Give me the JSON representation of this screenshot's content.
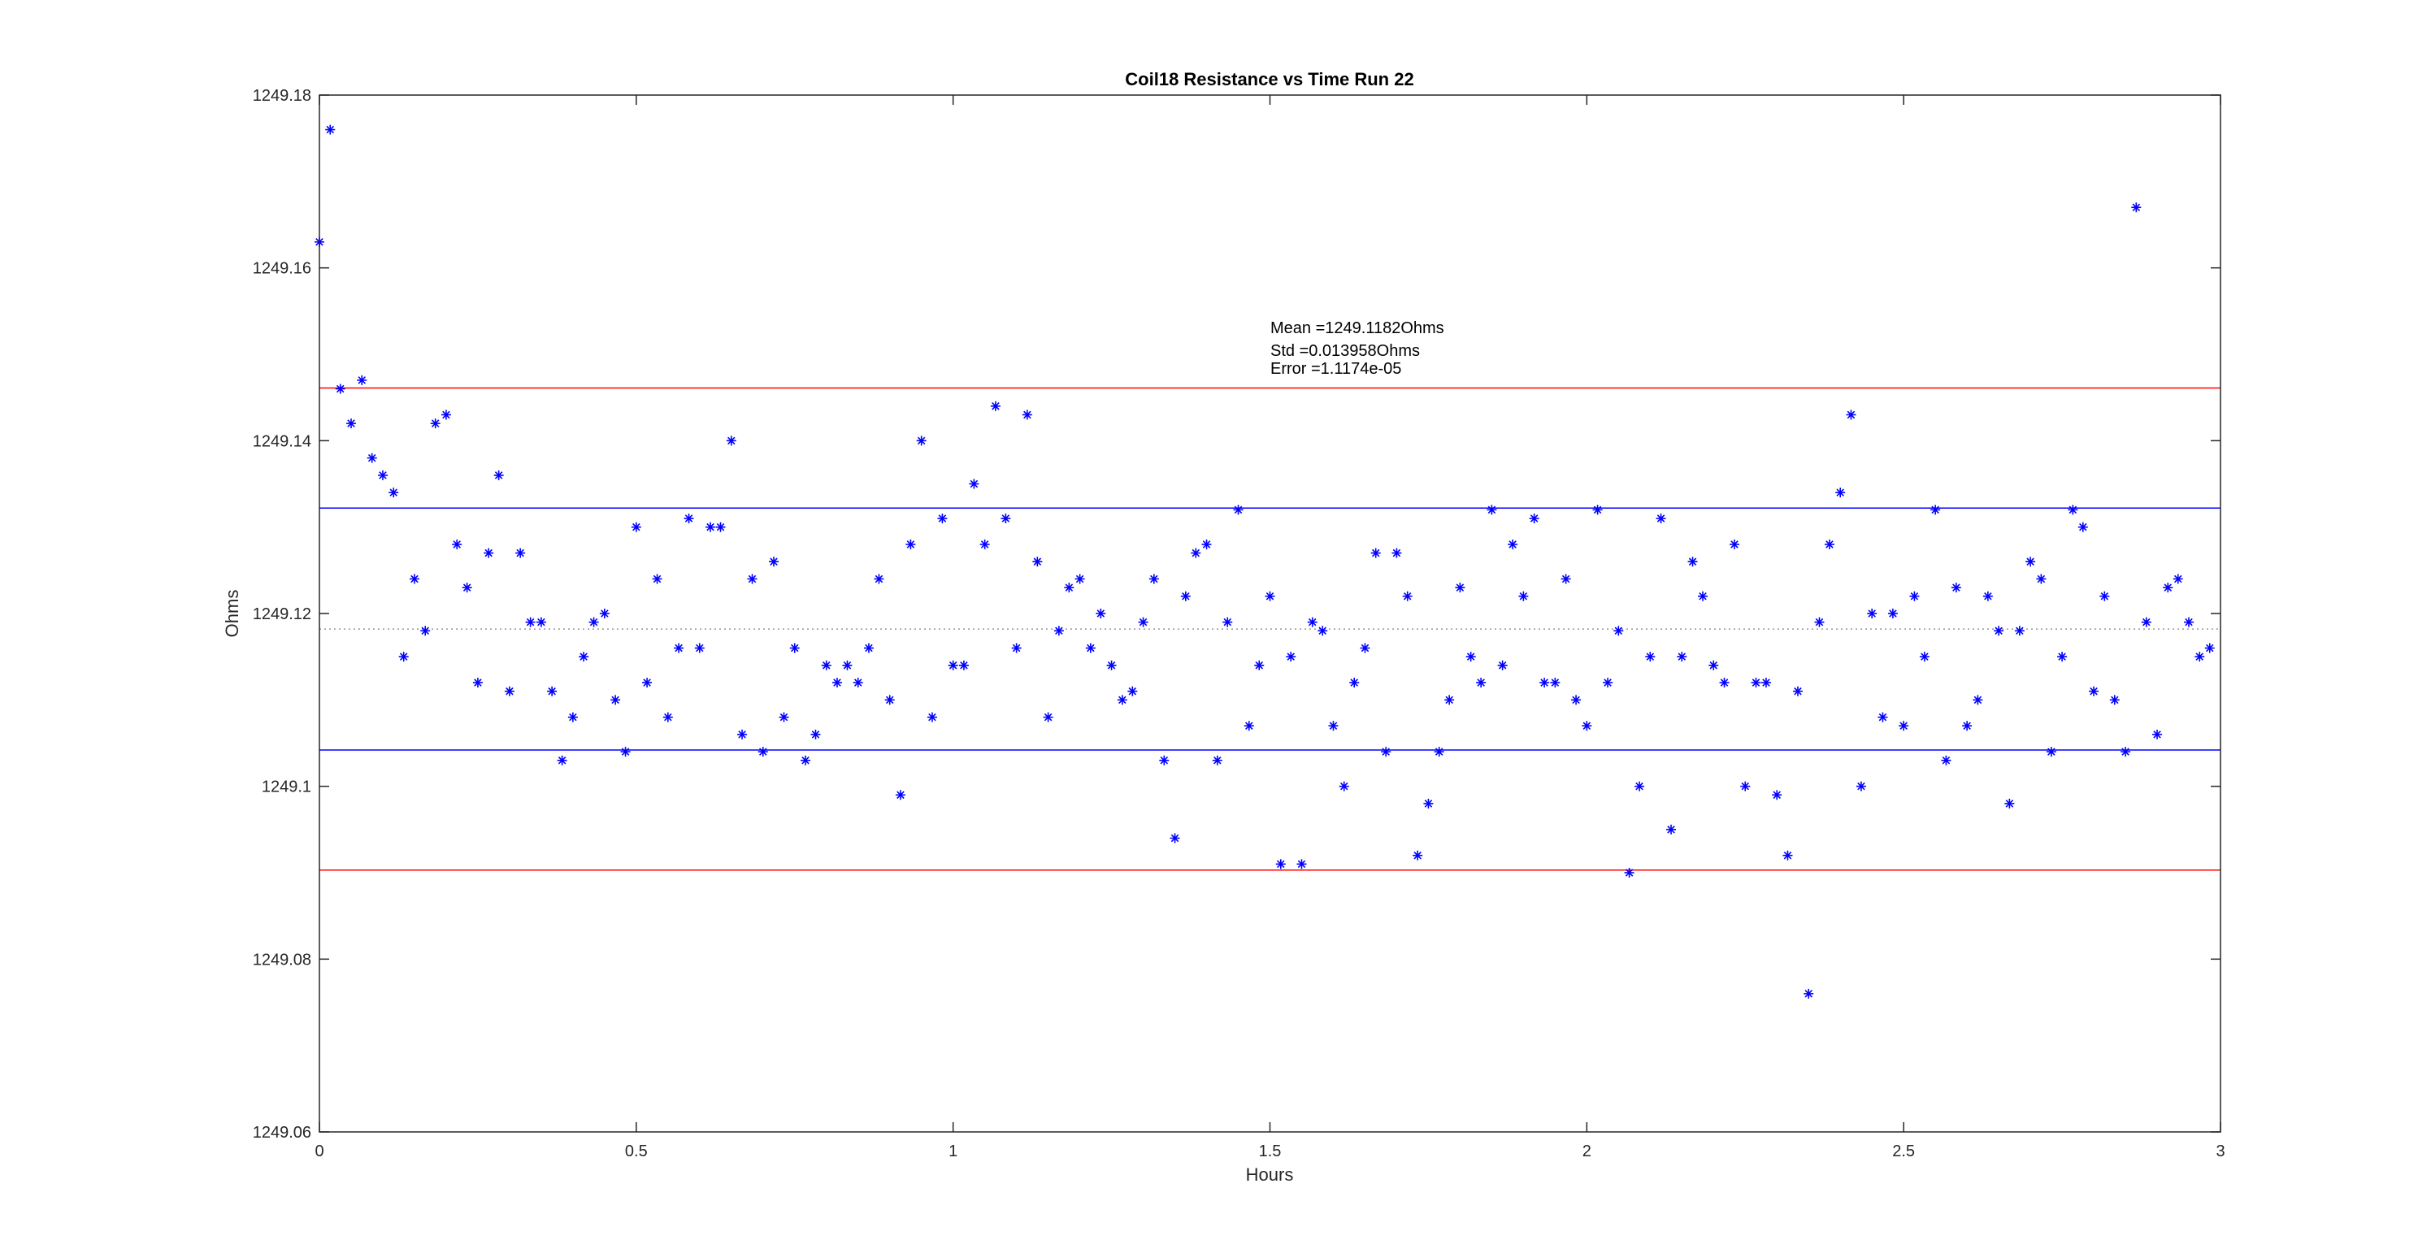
{
  "chart_data": {
    "type": "scatter",
    "title": "Coil18 Resistance vs Time Run 22",
    "xlabel": "Hours",
    "ylabel": "Ohms",
    "xlim": [
      0,
      3
    ],
    "ylim": [
      1249.06,
      1249.18
    ],
    "xticks": [
      0,
      0.5,
      1,
      1.5,
      2,
      2.5,
      3
    ],
    "xtick_labels": [
      "0",
      "0.5",
      "1",
      "1.5",
      "2",
      "2.5",
      "3"
    ],
    "yticks": [
      1249.06,
      1249.08,
      1249.1,
      1249.12,
      1249.14,
      1249.16,
      1249.18
    ],
    "ytick_labels": [
      "1249.06",
      "1249.08",
      "1249.1",
      "1249.12",
      "1249.14",
      "1249.16",
      "1249.18"
    ],
    "grid": false,
    "marker": "*",
    "marker_color": "#0000ff",
    "series": [
      {
        "x": [
          0.0,
          0.017,
          0.033,
          0.05,
          0.067,
          0.083,
          0.1,
          0.117,
          0.133,
          0.15,
          0.167,
          0.183,
          0.2,
          0.217,
          0.233,
          0.25,
          0.267,
          0.283,
          0.3,
          0.317,
          0.333,
          0.35,
          0.367,
          0.383,
          0.4,
          0.417,
          0.433,
          0.45,
          0.467,
          0.483,
          0.5,
          0.517,
          0.533,
          0.55,
          0.567,
          0.583,
          0.6,
          0.617,
          0.633,
          0.65,
          0.667,
          0.683,
          0.7,
          0.717,
          0.733,
          0.75,
          0.767,
          0.783,
          0.8,
          0.817,
          0.833,
          0.85,
          0.867,
          0.883,
          0.9,
          0.917,
          0.933,
          0.95,
          0.967,
          0.983,
          1.0,
          1.017,
          1.033,
          1.05,
          1.067,
          1.083,
          1.1,
          1.117,
          1.133,
          1.15,
          1.167,
          1.183,
          1.2,
          1.217,
          1.233,
          1.25,
          1.267,
          1.283,
          1.3,
          1.317,
          1.333,
          1.35,
          1.367,
          1.383,
          1.4,
          1.417,
          1.433,
          1.45,
          1.467,
          1.483,
          1.5,
          1.517,
          1.533,
          1.55,
          1.567,
          1.583,
          1.6,
          1.617,
          1.633,
          1.65,
          1.667,
          1.683,
          1.7,
          1.717,
          1.733,
          1.75,
          1.767,
          1.783,
          1.8,
          1.817,
          1.833,
          1.85,
          1.867,
          1.883,
          1.9,
          1.917,
          1.933,
          1.95,
          1.967,
          1.983,
          2.0,
          2.017,
          2.033,
          2.05,
          2.067,
          2.083,
          2.1,
          2.117,
          2.133,
          2.15,
          2.167,
          2.183,
          2.2,
          2.217,
          2.233,
          2.25,
          2.267,
          2.283,
          2.3,
          2.317,
          2.333,
          2.35,
          2.367,
          2.383,
          2.4,
          2.417,
          2.433,
          2.45,
          2.467,
          2.483,
          2.5,
          2.517,
          2.533,
          2.55,
          2.567,
          2.583,
          2.6,
          2.617,
          2.633,
          2.65,
          2.667,
          2.683,
          2.7,
          2.717,
          2.733,
          2.75,
          2.767,
          2.783,
          2.8,
          2.817,
          2.833,
          2.85,
          2.867,
          2.883,
          2.9,
          2.917,
          2.933,
          2.95,
          2.967,
          2.983
        ],
        "y": [
          1249.163,
          1249.176,
          1249.146,
          1249.142,
          1249.147,
          1249.138,
          1249.136,
          1249.134,
          1249.115,
          1249.124,
          1249.118,
          1249.142,
          1249.143,
          1249.128,
          1249.123,
          1249.112,
          1249.127,
          1249.136,
          1249.111,
          1249.127,
          1249.119,
          1249.119,
          1249.111,
          1249.103,
          1249.108,
          1249.115,
          1249.119,
          1249.12,
          1249.11,
          1249.104,
          1249.13,
          1249.112,
          1249.124,
          1249.108,
          1249.116,
          1249.131,
          1249.116,
          1249.13,
          1249.13,
          1249.14,
          1249.106,
          1249.124,
          1249.104,
          1249.126,
          1249.108,
          1249.116,
          1249.103,
          1249.106,
          1249.114,
          1249.112,
          1249.114,
          1249.112,
          1249.116,
          1249.124,
          1249.11,
          1249.099,
          1249.128,
          1249.14,
          1249.108,
          1249.131,
          1249.114,
          1249.114,
          1249.135,
          1249.128,
          1249.144,
          1249.131,
          1249.116,
          1249.143,
          1249.126,
          1249.108,
          1249.118,
          1249.123,
          1249.124,
          1249.116,
          1249.12,
          1249.114,
          1249.11,
          1249.111,
          1249.119,
          1249.124,
          1249.103,
          1249.094,
          1249.122,
          1249.127,
          1249.128,
          1249.103,
          1249.119,
          1249.132,
          1249.107,
          1249.114,
          1249.122,
          1249.091,
          1249.115,
          1249.091,
          1249.119,
          1249.118,
          1249.107,
          1249.1,
          1249.112,
          1249.116,
          1249.127,
          1249.104,
          1249.127,
          1249.122,
          1249.092,
          1249.098,
          1249.104,
          1249.11,
          1249.123,
          1249.115,
          1249.112,
          1249.132,
          1249.114,
          1249.128,
          1249.122,
          1249.131,
          1249.112,
          1249.112,
          1249.124,
          1249.11,
          1249.107,
          1249.132,
          1249.112,
          1249.118,
          1249.09,
          1249.1,
          1249.115,
          1249.131,
          1249.095,
          1249.115,
          1249.126,
          1249.122,
          1249.114,
          1249.112,
          1249.128,
          1249.1,
          1249.112,
          1249.112,
          1249.099,
          1249.092,
          1249.111,
          1249.076,
          1249.119,
          1249.128,
          1249.134,
          1249.143,
          1249.1,
          1249.12,
          1249.108,
          1249.12,
          1249.107,
          1249.122,
          1249.115,
          1249.132,
          1249.103,
          1249.123,
          1249.107,
          1249.11,
          1249.122,
          1249.118,
          1249.098,
          1249.118,
          1249.126,
          1249.124,
          1249.104,
          1249.115,
          1249.132,
          1249.13,
          1249.111,
          1249.122,
          1249.11,
          1249.104,
          1249.167,
          1249.119,
          1249.106,
          1249.123,
          1249.124,
          1249.119,
          1249.115,
          1249.116
        ]
      }
    ],
    "reference_lines": [
      {
        "y": 1249.1182,
        "color": "#808080",
        "style": "dotted"
      },
      {
        "y": 1249.1322,
        "color": "#0000ff",
        "style": "solid"
      },
      {
        "y": 1249.1042,
        "color": "#0000ff",
        "style": "solid"
      },
      {
        "y": 1249.1461,
        "color": "#ff0000",
        "style": "solid"
      },
      {
        "y": 1249.0903,
        "color": "#ff0000",
        "style": "solid"
      }
    ],
    "annotations": [
      "Mean =1249.1182Ohms",
      "Std =0.013958Ohms",
      "Error =1.1174e-05"
    ]
  }
}
